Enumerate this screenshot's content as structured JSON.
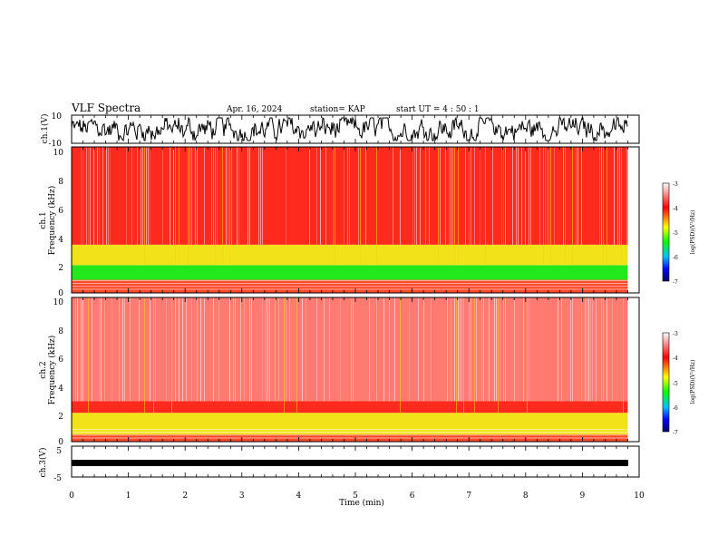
{
  "header": {
    "title": "VLF Spectra",
    "date": "Apr. 16, 2024",
    "station": "station= KAP",
    "start": "start  UT =   4 : 50 : 1"
  },
  "chart_data": [
    {
      "type": "line",
      "panel": "ch1-waveform",
      "ylabel": "ch.1(V)",
      "ylim": [
        -10,
        10
      ],
      "ytick_labels": [
        "10",
        "-10"
      ],
      "xlim": [
        0,
        10
      ],
      "note_series_color": "#000000"
    },
    {
      "type": "heatmap",
      "panel": "ch1-spectrogram",
      "ylabel": "ch.1\nFrequency (kHz)",
      "ylabel_lines": [
        "ch.1",
        "Frequency (kHz)"
      ],
      "ylim": [
        0,
        10
      ],
      "ytick_labels": [
        "0",
        "2",
        "4",
        "6",
        "8",
        "10"
      ],
      "xlim": [
        0,
        10
      ],
      "data_end_min": 9.8,
      "colorbar": {
        "label": "log(PSD)(V²/Hz)",
        "range": [
          -7,
          -3
        ],
        "tick_labels": [
          "-3",
          "-4",
          "-5",
          "-6",
          "-7"
        ]
      },
      "bands_khz": [
        {
          "from": 0.0,
          "to": 0.9,
          "level": "mixed"
        },
        {
          "from": 0.9,
          "to": 1.9,
          "level": "green"
        },
        {
          "from": 1.9,
          "to": 3.3,
          "level": "yellow"
        },
        {
          "from": 3.3,
          "to": 10.0,
          "level": "red"
        }
      ]
    },
    {
      "type": "heatmap",
      "panel": "ch2-spectrogram",
      "ylabel": "ch.2\nFrequency (kHz)",
      "ylabel_lines": [
        "ch.2",
        "Frequency (kHz)"
      ],
      "ylim": [
        0,
        10
      ],
      "ytick_labels": [
        "0",
        "2",
        "4",
        "6",
        "8",
        "10"
      ],
      "xlim": [
        0,
        10
      ],
      "data_end_min": 9.8,
      "colorbar": {
        "label": "log(PSD)(V²/Hz)",
        "range": [
          -7,
          -3
        ],
        "tick_labels": [
          "-3",
          "-4",
          "-5",
          "-6",
          "-7"
        ]
      },
      "bands_khz": [
        {
          "from": 0.0,
          "to": 0.5,
          "level": "mixed"
        },
        {
          "from": 0.5,
          "to": 2.0,
          "level": "yellow"
        },
        {
          "from": 2.0,
          "to": 2.8,
          "level": "red"
        },
        {
          "from": 2.8,
          "to": 10.0,
          "level": "pink"
        }
      ]
    },
    {
      "type": "line",
      "panel": "ch3-waveform",
      "ylabel": "ch.3(V)",
      "ylim": [
        -5,
        5
      ],
      "ytick_labels": [
        "5",
        "-5"
      ],
      "xlim": [
        0,
        10
      ],
      "xlabel": "Time (min)",
      "xtick_labels": [
        "0",
        "1",
        "2",
        "3",
        "4",
        "5",
        "6",
        "7",
        "8",
        "9",
        "10"
      ]
    }
  ],
  "colors": {
    "scale": [
      "#000066",
      "#0000ff",
      "#00c0ff",
      "#00ff00",
      "#ffff00",
      "#ff0000",
      "#ffffff"
    ],
    "red": "#ff2a1e",
    "green": "#22e81c",
    "yellow": "#f2e21a"
  }
}
